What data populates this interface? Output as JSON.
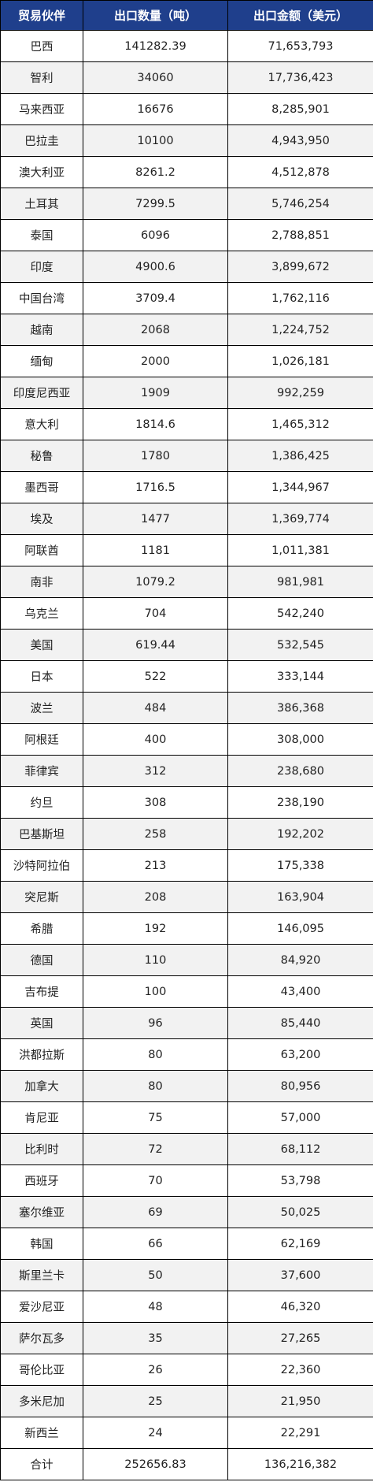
{
  "table": {
    "headers": [
      "贸易伙伴",
      "出口数量（吨）",
      "出口金额（美元）"
    ],
    "rows": [
      [
        "巴西",
        "141282.39",
        "71,653,793"
      ],
      [
        "智利",
        "34060",
        "17,736,423"
      ],
      [
        "马来西亚",
        "16676",
        "8,285,901"
      ],
      [
        "巴拉圭",
        "10100",
        "4,943,950"
      ],
      [
        "澳大利亚",
        "8261.2",
        "4,512,878"
      ],
      [
        "土耳其",
        "7299.5",
        "5,746,254"
      ],
      [
        "泰国",
        "6096",
        "2,788,851"
      ],
      [
        "印度",
        "4900.6",
        "3,899,672"
      ],
      [
        "中国台湾",
        "3709.4",
        "1,762,116"
      ],
      [
        "越南",
        "2068",
        "1,224,752"
      ],
      [
        "缅甸",
        "2000",
        "1,026,181"
      ],
      [
        "印度尼西亚",
        "1909",
        "992,259"
      ],
      [
        "意大利",
        "1814.6",
        "1,465,312"
      ],
      [
        "秘鲁",
        "1780",
        "1,386,425"
      ],
      [
        "墨西哥",
        "1716.5",
        "1,344,967"
      ],
      [
        "埃及",
        "1477",
        "1,369,774"
      ],
      [
        "阿联酋",
        "1181",
        "1,011,381"
      ],
      [
        "南非",
        "1079.2",
        "981,981"
      ],
      [
        "乌克兰",
        "704",
        "542,240"
      ],
      [
        "美国",
        "619.44",
        "532,545"
      ],
      [
        "日本",
        "522",
        "333,144"
      ],
      [
        "波兰",
        "484",
        "386,368"
      ],
      [
        "阿根廷",
        "400",
        "308,000"
      ],
      [
        "菲律宾",
        "312",
        "238,680"
      ],
      [
        "约旦",
        "308",
        "238,190"
      ],
      [
        "巴基斯坦",
        "258",
        "192,202"
      ],
      [
        "沙特阿拉伯",
        "213",
        "175,338"
      ],
      [
        "突尼斯",
        "208",
        "163,904"
      ],
      [
        "希腊",
        "192",
        "146,095"
      ],
      [
        "德国",
        "110",
        "84,920"
      ],
      [
        "吉布提",
        "100",
        "43,400"
      ],
      [
        "英国",
        "96",
        "85,440"
      ],
      [
        "洪都拉斯",
        "80",
        "63,200"
      ],
      [
        "加拿大",
        "80",
        "80,956"
      ],
      [
        "肯尼亚",
        "75",
        "57,000"
      ],
      [
        "比利时",
        "72",
        "68,112"
      ],
      [
        "西班牙",
        "70",
        "53,798"
      ],
      [
        "塞尔维亚",
        "69",
        "50,025"
      ],
      [
        "韩国",
        "66",
        "62,169"
      ],
      [
        "斯里兰卡",
        "50",
        "37,600"
      ],
      [
        "爱沙尼亚",
        "48",
        "46,320"
      ],
      [
        "萨尔瓦多",
        "35",
        "27,265"
      ],
      [
        "哥伦比亚",
        "26",
        "22,360"
      ],
      [
        "多米尼加",
        "25",
        "21,950"
      ],
      [
        "新西兰",
        "24",
        "22,291"
      ]
    ],
    "total": [
      "合计",
      "252656.83",
      "136,216,382"
    ]
  },
  "colors": {
    "header_bg": "#1f3f8c",
    "header_text": "#ffffff",
    "stripe": "#f2f2f2",
    "border": "#000000"
  }
}
